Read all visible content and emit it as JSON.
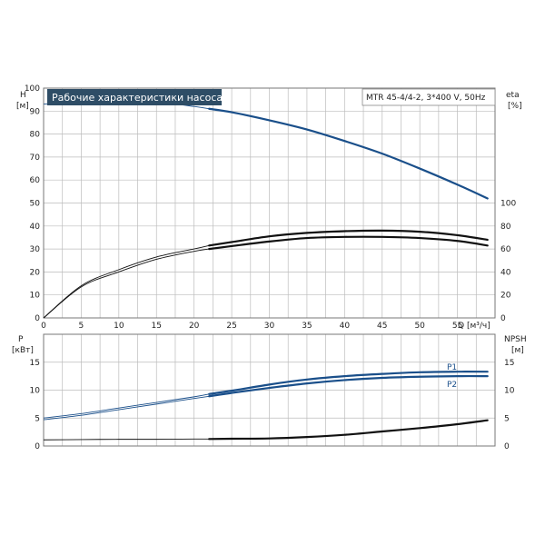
{
  "chart_data": [
    {
      "type": "line",
      "title": "Рабочие характеристики насоса",
      "model": "MTR 45-4/4-2, 3*400 V, 50Hz",
      "xlabel": "Q [м³/ч]",
      "ylabel_left": "H",
      "ylabel_left_unit": "[м]",
      "ylabel_right": "eta",
      "ylabel_right_unit": "[%]",
      "xlim": [
        0,
        60
      ],
      "ylim_left": [
        0,
        100
      ],
      "ylim_right_on_left_scale": [
        0,
        50
      ],
      "x_ticks": [
        "0",
        "5",
        "10",
        "15",
        "20",
        "25",
        "30",
        "35",
        "40",
        "45",
        "50",
        "55"
      ],
      "y_ticks_left": [
        "0",
        "10",
        "20",
        "30",
        "40",
        "50",
        "60",
        "70",
        "80",
        "90",
        "100"
      ],
      "y_ticks_right": [
        "0",
        "20",
        "40",
        "60",
        "80",
        "100"
      ],
      "grid": true,
      "series": [
        {
          "key": "head",
          "axis": "left",
          "color": "#1a4f8a",
          "x": [
            0,
            5,
            10,
            15,
            20,
            22,
            25,
            30,
            35,
            40,
            45,
            50,
            55,
            59
          ],
          "y": [
            93,
            94.6,
            95,
            94,
            92,
            91,
            89.5,
            86,
            82,
            77,
            71.5,
            65,
            58,
            52
          ]
        },
        {
          "key": "eta_1",
          "axis": "right",
          "color": "#111111",
          "x": [
            0,
            5,
            10,
            15,
            20,
            22,
            25,
            30,
            35,
            40,
            45,
            50,
            55,
            59
          ],
          "y": [
            0,
            28,
            42,
            53,
            60,
            63,
            66,
            71,
            74,
            75.5,
            76,
            75,
            72,
            68
          ]
        },
        {
          "key": "eta_2",
          "axis": "right",
          "color": "#111111",
          "x": [
            0,
            5,
            10,
            15,
            20,
            22,
            25,
            30,
            35,
            40,
            45,
            50,
            55,
            59
          ],
          "y": [
            0,
            27,
            40,
            51,
            58,
            60,
            62.5,
            66.5,
            69.5,
            70.5,
            70.5,
            69.5,
            67,
            63
          ]
        }
      ]
    },
    {
      "type": "line",
      "ylabel_left": "P",
      "ylabel_left_unit": "[кВт]",
      "ylabel_right": "NPSH",
      "ylabel_right_unit": "[м]",
      "xlim": [
        0,
        60
      ],
      "ylim_left": [
        0,
        20
      ],
      "ylim_right": [
        0,
        20
      ],
      "y_ticks_left": [
        "0",
        "5",
        "10",
        "15"
      ],
      "y_ticks_right": [
        "0",
        "5",
        "10",
        "15"
      ],
      "grid": true,
      "series": [
        {
          "key": "p1",
          "name": "P1",
          "axis": "left",
          "color": "#1a4f8a",
          "x": [
            0,
            5,
            10,
            15,
            20,
            22,
            25,
            30,
            35,
            40,
            45,
            50,
            55,
            59
          ],
          "y": [
            5,
            5.8,
            6.8,
            7.8,
            8.8,
            9.3,
            9.9,
            11,
            11.9,
            12.5,
            12.9,
            13.2,
            13.3,
            13.3
          ]
        },
        {
          "key": "p2",
          "name": "P2",
          "axis": "left",
          "color": "#1a4f8a",
          "x": [
            0,
            5,
            10,
            15,
            20,
            22,
            25,
            30,
            35,
            40,
            45,
            50,
            55,
            59
          ],
          "y": [
            4.7,
            5.5,
            6.5,
            7.5,
            8.5,
            8.9,
            9.5,
            10.4,
            11.2,
            11.8,
            12.2,
            12.4,
            12.5,
            12.5
          ]
        },
        {
          "key": "npsh",
          "axis": "right",
          "color": "#111111",
          "x": [
            0,
            5,
            10,
            15,
            20,
            22,
            25,
            30,
            35,
            40,
            45,
            50,
            55,
            59
          ],
          "y": [
            1.1,
            1.15,
            1.2,
            1.2,
            1.25,
            1.25,
            1.3,
            1.35,
            1.6,
            2,
            2.6,
            3.2,
            3.9,
            4.6
          ]
        }
      ]
    }
  ]
}
